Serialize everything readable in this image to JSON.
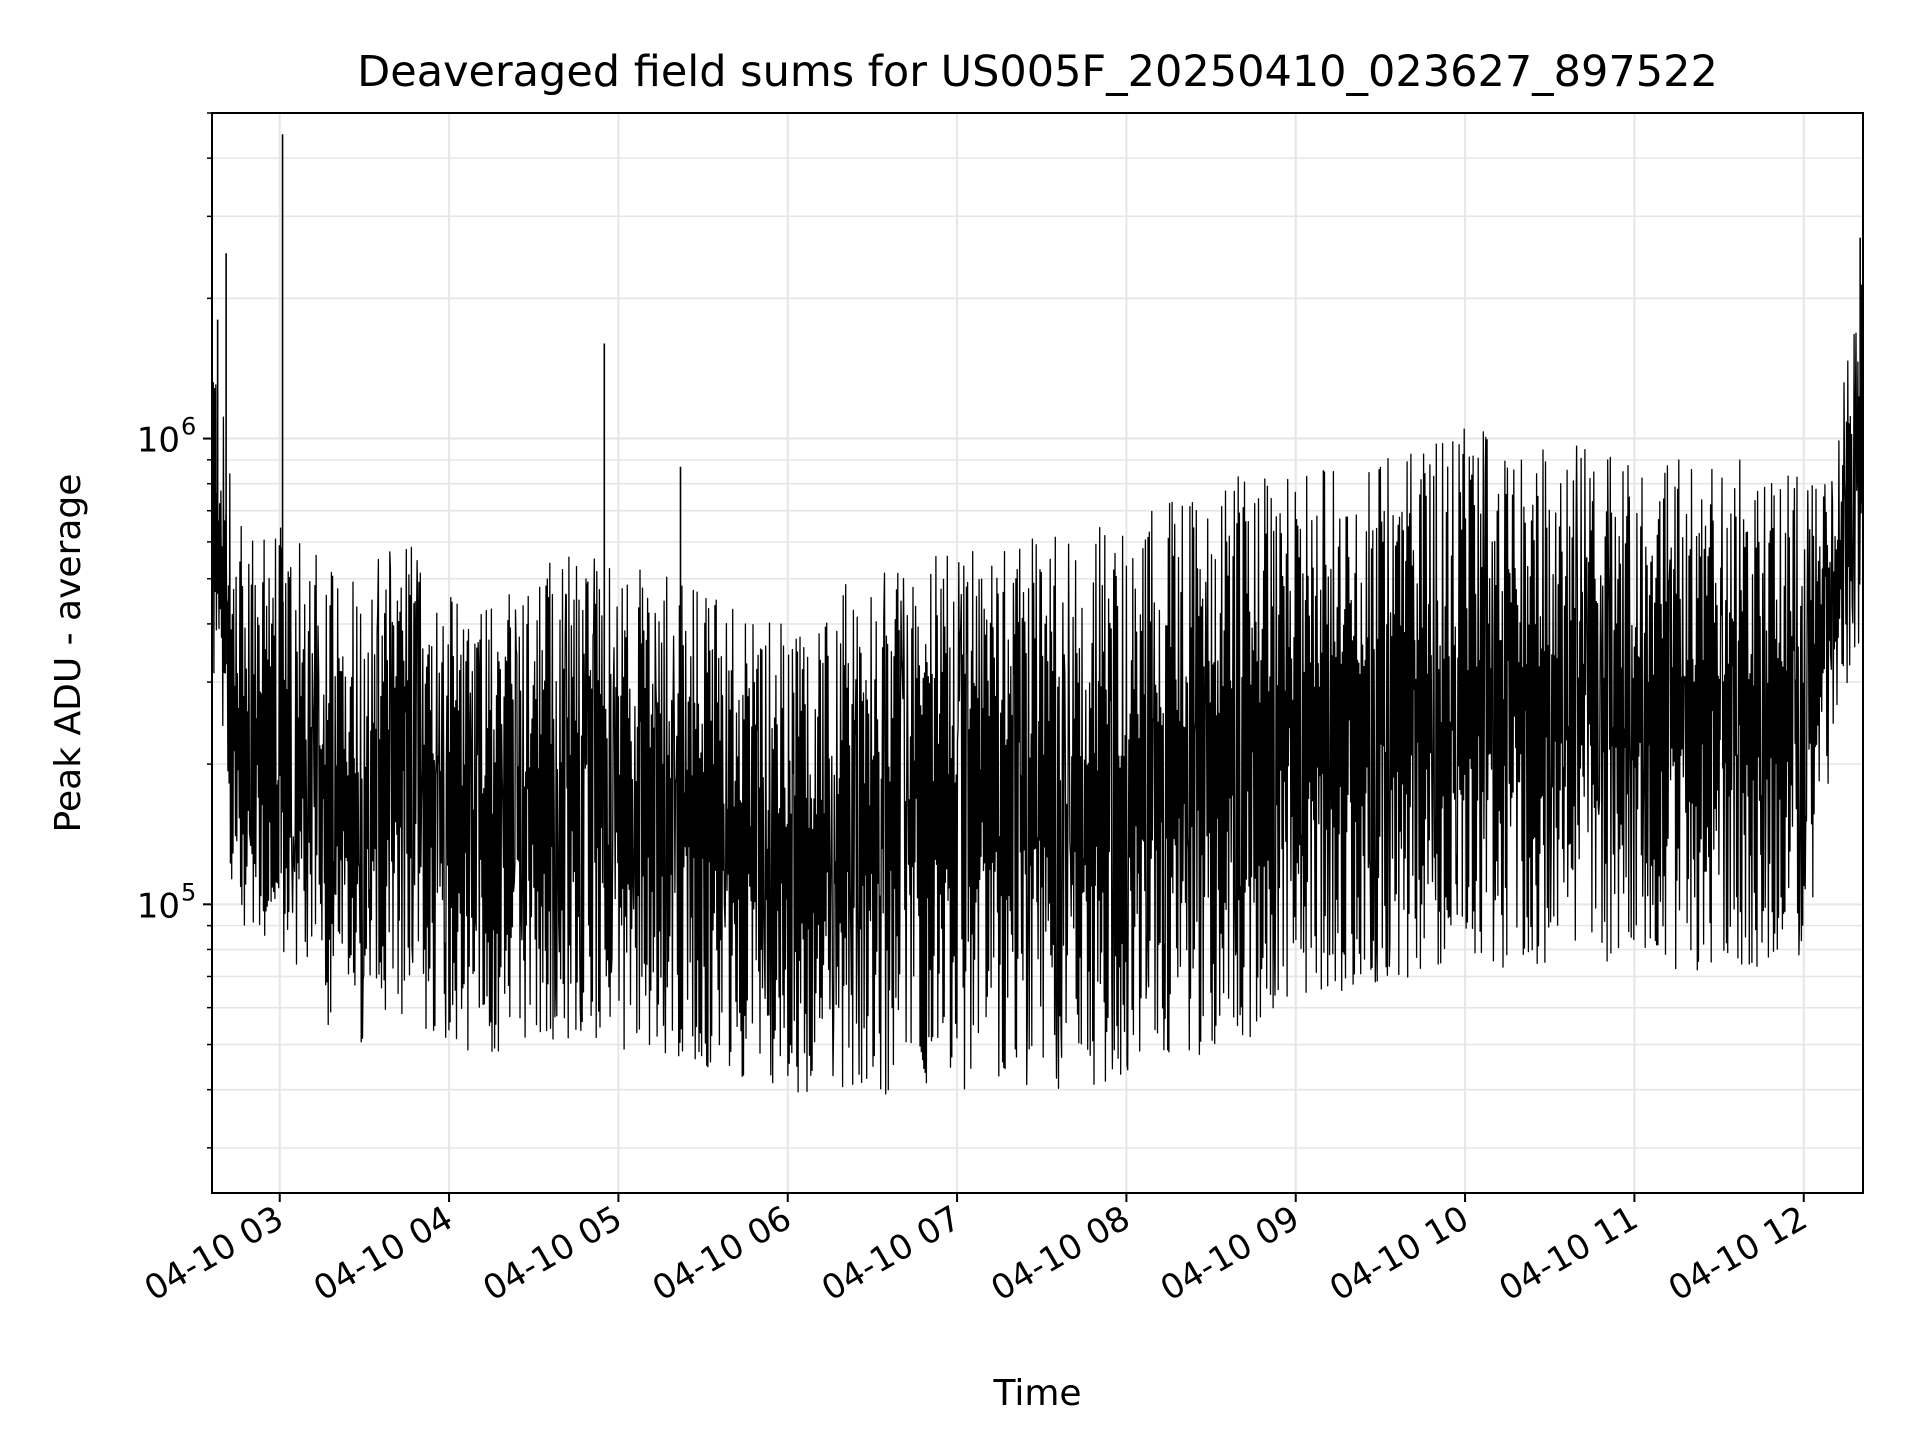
{
  "chart_data": {
    "type": "line",
    "title": "Deaveraged field sums for US005F_20250410_023627_897522",
    "xlabel": "Time",
    "ylabel": "Peak ADU - average",
    "y_scale": "log",
    "ylim": [
      24000,
      5000000
    ],
    "xlim": [
      "2025-04-10 02:36",
      "2025-04-10 12:21"
    ],
    "grid": true,
    "line_color": "#000000",
    "x_ticks": [
      "04-10 03",
      "04-10 04",
      "04-10 05",
      "04-10 06",
      "04-10 07",
      "04-10 08",
      "04-10 09",
      "04-10 10",
      "04-10 11",
      "04-10 12"
    ],
    "y_ticks": [
      {
        "base": "10",
        "exp": "5",
        "value": 100000
      },
      {
        "base": "10",
        "exp": "6",
        "value": 1000000
      }
    ],
    "series": [
      {
        "x": [
          "2025-04-10 02:36",
          "2025-04-10 02:45",
          "2025-04-10 03:00",
          "2025-04-10 03:15",
          "2025-04-10 03:30",
          "2025-04-10 03:45",
          "2025-04-10 04:00",
          "2025-04-10 04:15",
          "2025-04-10 04:30",
          "2025-04-10 04:45",
          "2025-04-10 05:00",
          "2025-04-10 05:15",
          "2025-04-10 05:30",
          "2025-04-10 05:45",
          "2025-04-10 06:00",
          "2025-04-10 06:15",
          "2025-04-10 06:30",
          "2025-04-10 06:45",
          "2025-04-10 07:00",
          "2025-04-10 07:15",
          "2025-04-10 07:30",
          "2025-04-10 07:45",
          "2025-04-10 08:00",
          "2025-04-10 08:15",
          "2025-04-10 08:30",
          "2025-04-10 08:45",
          "2025-04-10 09:00",
          "2025-04-10 09:15",
          "2025-04-10 09:30",
          "2025-04-10 09:45",
          "2025-04-10 10:00",
          "2025-04-10 10:15",
          "2025-04-10 10:30",
          "2025-04-10 10:45",
          "2025-04-10 11:00",
          "2025-04-10 11:15",
          "2025-04-10 11:30",
          "2025-04-10 11:45",
          "2025-04-10 12:00",
          "2025-04-10 12:10",
          "2025-04-10 12:21"
        ],
        "upper": [
          1800000,
          650000,
          650000,
          560000,
          520000,
          620000,
          500000,
          450000,
          550000,
          580000,
          540000,
          520000,
          480000,
          430000,
          400000,
          480000,
          520000,
          560000,
          580000,
          600000,
          620000,
          650000,
          700000,
          760000,
          800000,
          850000,
          900000,
          920000,
          950000,
          1000000,
          1050000,
          1080000,
          1000000,
          950000,
          950000,
          900000,
          920000,
          900000,
          880000,
          900000,
          2500000
        ],
        "lower": [
          300000,
          85000,
          75000,
          55000,
          50000,
          55000,
          50000,
          45000,
          48000,
          52000,
          48000,
          48000,
          45000,
          42000,
          40000,
          38000,
          38000,
          38000,
          38000,
          42000,
          40000,
          40000,
          42000,
          46000,
          48000,
          52000,
          60000,
          65000,
          68000,
          70000,
          72000,
          72000,
          72000,
          75000,
          75000,
          72000,
          72000,
          72000,
          75000,
          200000,
          400000
        ]
      }
    ],
    "spikes": [
      {
        "x": "2025-04-10 02:38",
        "y": 1800000
      },
      {
        "x": "2025-04-10 02:41",
        "y": 2500000
      },
      {
        "x": "2025-04-10 03:01",
        "y": 4500000
      },
      {
        "x": "2025-04-10 04:55",
        "y": 1600000
      },
      {
        "x": "2025-04-10 05:22",
        "y": 870000
      },
      {
        "x": "2025-04-10 12:20",
        "y": 2700000
      }
    ]
  }
}
